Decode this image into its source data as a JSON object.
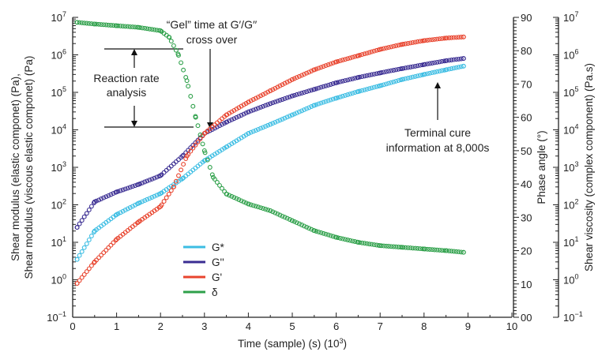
{
  "chart_data": {
    "type": "scatter",
    "x_label": "Time (sample) (s) (10",
    "x_label_sup": "3",
    "x_label_end": ")",
    "x_ticks": [
      "0",
      "1",
      "2",
      "3",
      "4",
      "5",
      "6",
      "7",
      "8",
      "9",
      "10"
    ],
    "xlim": [
      0,
      10
    ],
    "left_axis": {
      "label_line1": "Shear modulus (elastic componet) (Pa),",
      "label_line2": "Shear modulus (viscous elastic componet) (Pa)",
      "scale": "log",
      "ylim": [
        0.1,
        10000000
      ],
      "ticks": [
        {
          "base": "10",
          "exp": "7"
        },
        {
          "base": "10",
          "exp": "6"
        },
        {
          "base": "10",
          "exp": "5"
        },
        {
          "base": "10",
          "exp": "4"
        },
        {
          "base": "10",
          "exp": "3"
        },
        {
          "base": "10",
          "exp": "2"
        },
        {
          "base": "10",
          "exp": "1"
        },
        {
          "base": "10",
          "exp": "0"
        },
        {
          "base": "10",
          "exp": "−1"
        }
      ]
    },
    "phase_axis": {
      "label": "Phase angle (°)",
      "scale": "linear",
      "ylim": [
        0,
        90
      ],
      "ticks": [
        "90",
        "80",
        "70",
        "60",
        "50",
        "40",
        "30",
        "20",
        "10",
        "00"
      ]
    },
    "viscosity_axis": {
      "label": "Shear viscosity (complex component) (Pa.s)",
      "scale": "log",
      "ticks": [
        {
          "base": "10",
          "exp": "7"
        },
        {
          "base": "10",
          "exp": "6"
        },
        {
          "base": "10",
          "exp": "5"
        },
        {
          "base": "10",
          "exp": "4"
        },
        {
          "base": "10",
          "exp": "3"
        },
        {
          "base": "10",
          "exp": "2"
        },
        {
          "base": "10",
          "exp": "1"
        },
        {
          "base": "10",
          "exp": "0"
        },
        {
          "base": "10",
          "exp": "−1"
        }
      ]
    },
    "series": [
      {
        "name": "G*",
        "color": "#3cbde3",
        "axis": "left",
        "x": [
          0.1,
          0.5,
          1.0,
          1.5,
          2.0,
          2.5,
          3.0,
          3.5,
          4.0,
          4.5,
          5.0,
          5.5,
          6.0,
          6.5,
          7.0,
          7.5,
          8.0,
          8.5,
          8.9
        ],
        "y": [
          3.5,
          20,
          55,
          110,
          200,
          500,
          1500,
          3500,
          8000,
          14000,
          25000,
          45000,
          70000,
          105000,
          150000,
          220000,
          300000,
          400000,
          500000
        ]
      },
      {
        "name": "G''",
        "color": "#3a2d92",
        "axis": "left",
        "x": [
          0.1,
          0.5,
          1.0,
          1.5,
          2.0,
          2.5,
          3.0,
          3.5,
          4.0,
          4.5,
          5.0,
          5.5,
          6.0,
          6.5,
          7.0,
          7.5,
          8.0,
          8.5,
          8.9
        ],
        "y": [
          25,
          120,
          220,
          350,
          600,
          2000,
          8000,
          16000,
          30000,
          50000,
          80000,
          120000,
          180000,
          250000,
          330000,
          430000,
          550000,
          700000,
          800000
        ]
      },
      {
        "name": "G'",
        "color": "#e8442e",
        "axis": "left",
        "x": [
          0.1,
          0.5,
          1.0,
          1.5,
          2.0,
          2.3,
          2.6,
          3.0,
          3.5,
          4.0,
          4.5,
          5.0,
          5.5,
          6.0,
          6.5,
          7.0,
          7.5,
          8.0,
          8.5,
          8.9
        ],
        "y": [
          0.8,
          3,
          12,
          35,
          90,
          300,
          2000,
          8000,
          25000,
          55000,
          110000,
          220000,
          400000,
          650000,
          950000,
          1400000,
          1900000,
          2400000,
          2800000,
          3000000
        ]
      },
      {
        "name": "δ",
        "color": "#2ea04a",
        "axis": "phase",
        "x": [
          0.1,
          0.5,
          1.0,
          1.5,
          2.0,
          2.2,
          2.4,
          2.6,
          2.8,
          3.0,
          3.2,
          3.5,
          4.0,
          4.5,
          5.0,
          5.5,
          6.0,
          6.5,
          7.0,
          7.5,
          8.0,
          8.5,
          8.9
        ],
        "y": [
          88.5,
          88,
          87.5,
          87,
          86,
          84,
          79,
          71,
          60,
          50,
          42,
          37,
          34,
          32,
          29,
          26,
          24,
          22.5,
          21.5,
          21,
          20.5,
          20,
          19.5
        ]
      }
    ],
    "legend_position": "bottom-center"
  },
  "annotations": {
    "reaction_rate_line1": "Reaction rate",
    "reaction_rate_line2": "analysis",
    "gel_line1": "“Gel” time at G′/G′′",
    "gel_line2": "cross over",
    "terminal_line1": "Terminal cure",
    "terminal_line2": "information at 8,000s"
  }
}
